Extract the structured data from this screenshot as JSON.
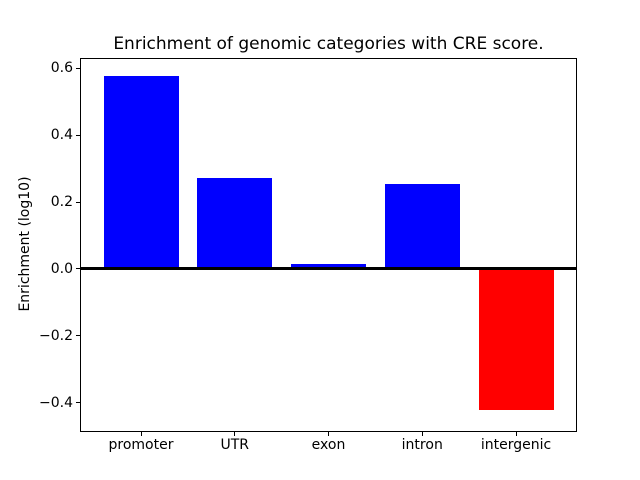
{
  "figure": {
    "background_color": "#ffffff"
  },
  "chart_data": {
    "type": "bar",
    "title": "Enrichment of genomic categories with CRE score.",
    "xlabel": "",
    "ylabel": "Enrichment (log10)",
    "categories": [
      "promoter",
      "UTR",
      "exon",
      "intron",
      "intergenic"
    ],
    "values": [
      0.578,
      0.271,
      0.015,
      0.253,
      -0.421
    ],
    "bar_colors": [
      "#0000ff",
      "#0000ff",
      "#0000ff",
      "#0000ff",
      "#ff0000"
    ],
    "positive_color": "#0000ff",
    "negative_color": "#ff0000",
    "bar_width": 0.8,
    "ylim": [
      -0.485,
      0.628
    ],
    "xlim": [
      -0.64,
      4.64
    ],
    "yticks": [
      0.6,
      0.4,
      0.2,
      0.0,
      -0.2,
      -0.4
    ],
    "ytick_labels": [
      "0.6",
      "0.4",
      "0.2",
      "0.0",
      "−0.2",
      "−0.4"
    ],
    "grid": false,
    "legend": null,
    "zero_line": {
      "value": 0.0,
      "color": "#000000"
    },
    "text_color": "#000000",
    "spine_color": "#000000"
  }
}
